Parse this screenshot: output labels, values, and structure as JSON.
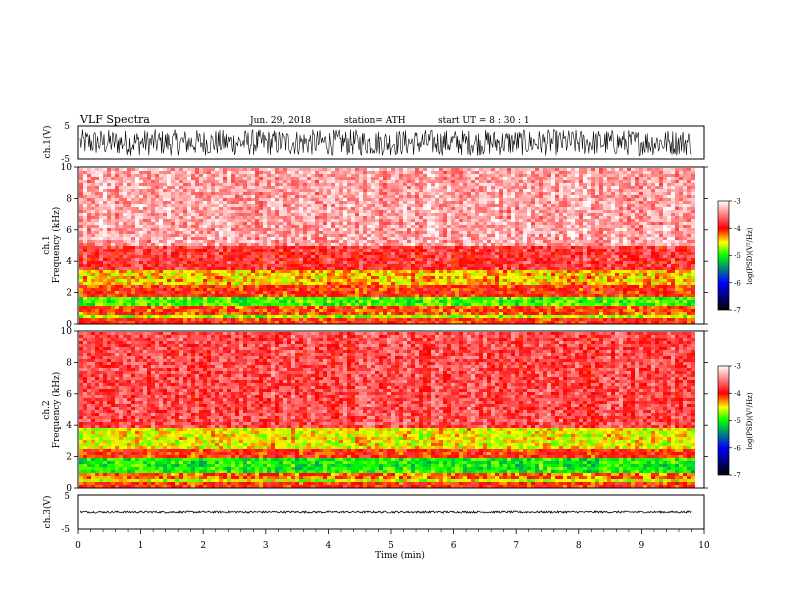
{
  "header": {
    "title": "VLF  Spectra",
    "date": "Jun. 29, 2018",
    "station": "station= ATH",
    "start": "start  UT  =    8  : 30 : 1"
  },
  "colors": {
    "low": "#000000",
    "mid_low": "#0000ff",
    "mid": "#00ff00",
    "mid_high": "#ffff00",
    "high": "#ff0000",
    "top": "#ffffff"
  },
  "chart_data": [
    {
      "type": "line",
      "name": "ch1-waveform",
      "ylabel": "ch.1(V)",
      "ylim": [
        -5,
        5
      ],
      "yticks": [
        "5",
        "-5"
      ],
      "amplitude_range": [
        -4,
        4
      ]
    },
    {
      "type": "heatmap",
      "name": "ch1-spectrogram",
      "ylabel_line1": "ch.1",
      "ylabel_line2": "Frequency  (kHz)",
      "xlim": [
        0,
        10
      ],
      "ylim": [
        0,
        10
      ],
      "yticks": [
        "0",
        "2",
        "4",
        "6",
        "8",
        "10"
      ],
      "data_end_min": 9.8,
      "bands_khz": [
        {
          "from": 0,
          "to": 0.35,
          "log_psd": -4.0
        },
        {
          "from": 0.35,
          "to": 0.6,
          "log_psd": -4.7
        },
        {
          "from": 0.6,
          "to": 1.1,
          "log_psd": -4.1
        },
        {
          "from": 1.1,
          "to": 1.8,
          "log_psd": -4.9
        },
        {
          "from": 1.8,
          "to": 2.5,
          "log_psd": -4.0
        },
        {
          "from": 2.5,
          "to": 3.4,
          "log_psd": -4.4
        },
        {
          "from": 3.4,
          "to": 5.0,
          "log_psd": -3.8
        },
        {
          "from": 5.0,
          "to": 10.0,
          "log_psd": -3.35
        }
      ],
      "colorbar": {
        "label": "log(PSD)(V²/Hz)",
        "range": [
          -7,
          -3
        ],
        "ticks": [
          "-3",
          "-4",
          "-5",
          "-6",
          "-7"
        ]
      }
    },
    {
      "type": "heatmap",
      "name": "ch2-spectrogram",
      "ylabel_line1": "ch.2",
      "ylabel_line2": "Frequency  (kHz)",
      "xlim": [
        0,
        10
      ],
      "ylim": [
        0,
        10
      ],
      "yticks": [
        "0",
        "2",
        "4",
        "6",
        "8",
        "10"
      ],
      "data_end_min": 9.8,
      "bands_khz": [
        {
          "from": 0,
          "to": 0.35,
          "log_psd": -4.0
        },
        {
          "from": 0.35,
          "to": 0.6,
          "log_psd": -4.6
        },
        {
          "from": 0.6,
          "to": 1.0,
          "log_psd": -4.2
        },
        {
          "from": 1.0,
          "to": 1.9,
          "log_psd": -5.0
        },
        {
          "from": 1.9,
          "to": 2.5,
          "log_psd": -4.0
        },
        {
          "from": 2.5,
          "to": 3.8,
          "log_psd": -4.5
        },
        {
          "from": 3.8,
          "to": 10.0,
          "log_psd": -3.7
        }
      ],
      "colorbar": {
        "label": "log(PSD)(V²/Hz)",
        "range": [
          -7,
          -3
        ],
        "ticks": [
          "-3",
          "-4",
          "-5",
          "-6",
          "-7"
        ]
      }
    },
    {
      "type": "line",
      "name": "ch3-waveform",
      "ylabel": "ch.3(V)",
      "ylim": [
        -5,
        5
      ],
      "yticks": [
        "5",
        "-5"
      ],
      "amplitude_range": [
        -0.3,
        0.3
      ]
    }
  ],
  "xaxis": {
    "label": "Time  (min)",
    "ticks": [
      "0",
      "1",
      "2",
      "3",
      "4",
      "5",
      "6",
      "7",
      "8",
      "9",
      "10"
    ],
    "range": [
      0,
      10
    ]
  }
}
